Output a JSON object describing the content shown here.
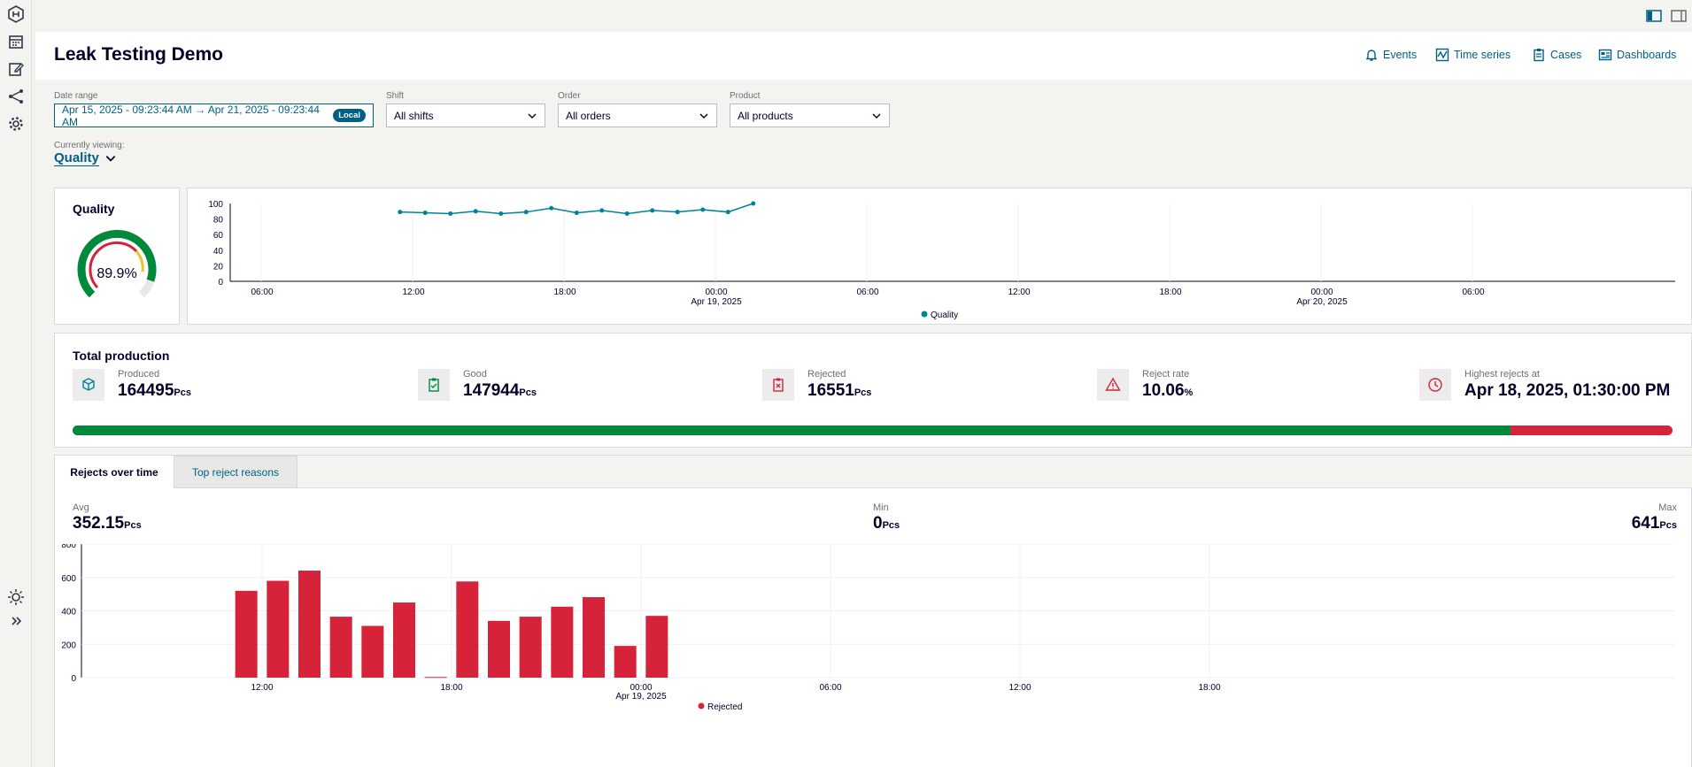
{
  "page": {
    "title": "Leak Testing Demo",
    "header_links": [
      {
        "label": "Events",
        "icon": "bell-icon"
      },
      {
        "label": "Time series",
        "icon": "chart-icon"
      },
      {
        "label": "Cases",
        "icon": "clipboard-icon"
      },
      {
        "label": "Dashboards",
        "icon": "dashboard-icon"
      }
    ]
  },
  "filters": {
    "date_range": {
      "label": "Date range",
      "value": "Apr 15, 2025 - 09:23:44 AM → Apr 21, 2025 - 09:23:44 AM",
      "badge": "Local"
    },
    "shift": {
      "label": "Shift",
      "value": "All shifts"
    },
    "order": {
      "label": "Order",
      "value": "All orders"
    },
    "product": {
      "label": "Product",
      "value": "All products"
    }
  },
  "viewing": {
    "label": "Currently viewing:",
    "value": "Quality"
  },
  "quality_card": {
    "title": "Quality",
    "value": "89.9%",
    "fraction": 0.899
  },
  "quality_chart": {
    "chart_data": {
      "type": "line",
      "series": [
        {
          "name": "Quality",
          "color": "#00829b",
          "points": [
            [
              "2025-04-18 11:30",
              89
            ],
            [
              "2025-04-18 12:30",
              88
            ],
            [
              "2025-04-18 13:30",
              87
            ],
            [
              "2025-04-18 14:30",
              90
            ],
            [
              "2025-04-18 15:30",
              87
            ],
            [
              "2025-04-18 16:30",
              89
            ],
            [
              "2025-04-18 17:30",
              94
            ],
            [
              "2025-04-18 18:30",
              88
            ],
            [
              "2025-04-18 19:30",
              91
            ],
            [
              "2025-04-18 20:30",
              87
            ],
            [
              "2025-04-18 21:30",
              91
            ],
            [
              "2025-04-18 22:30",
              89
            ],
            [
              "2025-04-18 23:30",
              92
            ],
            [
              "2025-04-19 00:30",
              89
            ],
            [
              "2025-04-19 01:30",
              100
            ]
          ]
        }
      ],
      "y_ticks": [
        "100",
        "80",
        "60",
        "40",
        "20",
        "0"
      ],
      "ylim": [
        0,
        100
      ],
      "x_ticks": [
        {
          "label": "06:00",
          "sub": ""
        },
        {
          "label": "12:00",
          "sub": ""
        },
        {
          "label": "18:00",
          "sub": ""
        },
        {
          "label": "00:00",
          "sub": "Apr 19, 2025"
        },
        {
          "label": "06:00",
          "sub": ""
        },
        {
          "label": "12:00",
          "sub": ""
        },
        {
          "label": "18:00",
          "sub": ""
        },
        {
          "label": "00:00",
          "sub": "Apr 20, 2025"
        },
        {
          "label": "06:00",
          "sub": ""
        }
      ],
      "legend": "bottom"
    }
  },
  "production": {
    "title": "Total production",
    "unit": "Pcs",
    "stats": [
      {
        "label": "Produced",
        "value": "164495",
        "unit": "Pcs",
        "icon": "cube-icon",
        "color": "#00829b"
      },
      {
        "label": "Good",
        "value": "147944",
        "unit": "Pcs",
        "icon": "clipboard-check-icon",
        "color": "#00893b"
      },
      {
        "label": "Rejected",
        "value": "16551",
        "unit": "Pcs",
        "icon": "clipboard-x-icon",
        "color": "#d72339"
      },
      {
        "label": "Reject rate",
        "value": "10.06",
        "unit": "%",
        "icon": "warning-icon",
        "color": "#d72339"
      },
      {
        "label": "Highest rejects at",
        "value": "Apr 18, 2025, 01:30:00 PM",
        "unit": "",
        "icon": "clock-icon",
        "color": "#d72339"
      }
    ],
    "good_fraction": 0.899,
    "colors": {
      "good": "#00893b",
      "rejected": "#d72339"
    }
  },
  "rejects": {
    "tabs": [
      "Rejects over time",
      "Top reject reasons"
    ],
    "active_tab": 0,
    "avg": {
      "label": "Avg",
      "value": "352.15",
      "unit": "Pcs"
    },
    "min": {
      "label": "Min",
      "value": "0",
      "unit": "Pcs"
    },
    "max": {
      "label": "Max",
      "value": "641",
      "unit": "Pcs"
    },
    "chart_data": {
      "type": "bar",
      "series": [
        {
          "name": "Rejected",
          "color": "#d72339"
        }
      ],
      "x": [
        "2025-04-18 11:30",
        "2025-04-18 12:30",
        "2025-04-18 13:30",
        "2025-04-18 14:30",
        "2025-04-18 15:30",
        "2025-04-18 16:30",
        "2025-04-18 17:30",
        "2025-04-18 18:30",
        "2025-04-18 19:30",
        "2025-04-18 20:30",
        "2025-04-18 21:30",
        "2025-04-18 22:30",
        "2025-04-18 23:30",
        "2025-04-19 00:30"
      ],
      "values": [
        520,
        580,
        641,
        365,
        310,
        450,
        4,
        576,
        340,
        365,
        425,
        482,
        190,
        370
      ],
      "y_ticks": [
        "800",
        "600",
        "400",
        "200",
        "0"
      ],
      "ylim": [
        0,
        800
      ],
      "x_ticks": [
        {
          "label": "12:00",
          "sub": ""
        },
        {
          "label": "18:00",
          "sub": ""
        },
        {
          "label": "00:00",
          "sub": "Apr 19, 2025"
        },
        {
          "label": "06:00",
          "sub": ""
        },
        {
          "label": "12:00",
          "sub": ""
        },
        {
          "label": "18:00",
          "sub": ""
        }
      ],
      "legend": "bottom"
    }
  },
  "sidebar": {
    "items": [
      "logo-icon",
      "calendar-icon",
      "edit-icon",
      "share-icon",
      "settings-icon"
    ],
    "bottom": [
      "theme-icon",
      "expand-icon"
    ]
  }
}
